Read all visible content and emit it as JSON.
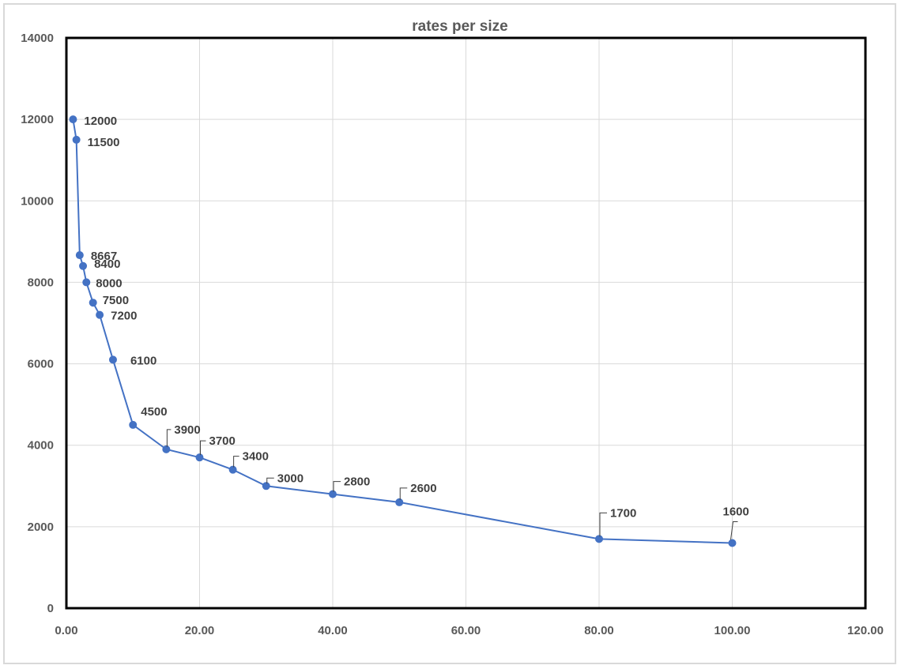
{
  "chart_data": {
    "type": "scatter",
    "title": "rates per size",
    "xlabel": "",
    "ylabel": "",
    "xlim": [
      0,
      120
    ],
    "ylim": [
      0,
      14000
    ],
    "x_ticks": [
      "0.00",
      "20.00",
      "40.00",
      "60.00",
      "80.00",
      "100.00",
      "120.00"
    ],
    "y_ticks": [
      "0",
      "2000",
      "4000",
      "6000",
      "8000",
      "10000",
      "12000",
      "14000"
    ],
    "grid": true,
    "legend": "none",
    "series_color": "#4472C4",
    "points": [
      {
        "x": 1,
        "y": 12000,
        "label": "12000"
      },
      {
        "x": 1.5,
        "y": 11500,
        "label": "11500"
      },
      {
        "x": 2,
        "y": 8667,
        "label": "8667"
      },
      {
        "x": 2.5,
        "y": 8400,
        "label": "8400"
      },
      {
        "x": 3,
        "y": 8000,
        "label": "8000"
      },
      {
        "x": 4,
        "y": 7500,
        "label": "7500"
      },
      {
        "x": 5,
        "y": 7200,
        "label": "7200"
      },
      {
        "x": 7,
        "y": 6100,
        "label": "6100"
      },
      {
        "x": 10,
        "y": 4500,
        "label": "4500"
      },
      {
        "x": 15,
        "y": 3900,
        "label": "3900"
      },
      {
        "x": 20,
        "y": 3700,
        "label": "3700"
      },
      {
        "x": 25,
        "y": 3400,
        "label": "3400"
      },
      {
        "x": 30,
        "y": 3000,
        "label": "3000"
      },
      {
        "x": 40,
        "y": 2800,
        "label": "2800"
      },
      {
        "x": 50,
        "y": 2600,
        "label": "2600"
      },
      {
        "x": 80,
        "y": 1700,
        "label": "1700"
      },
      {
        "x": 100,
        "y": 1600,
        "label": "1600"
      }
    ]
  }
}
